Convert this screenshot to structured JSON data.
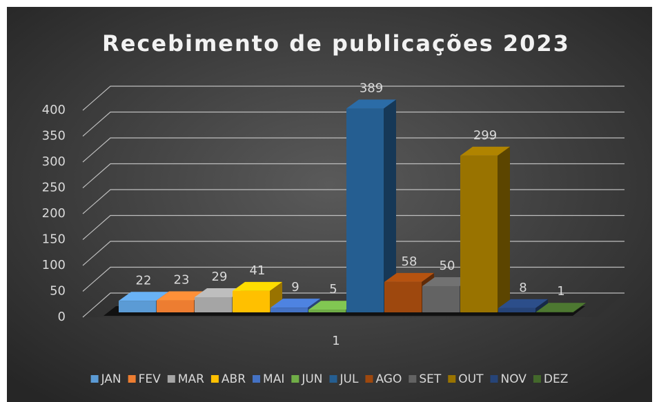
{
  "chart_data": {
    "type": "bar",
    "title": "Recebimento de publicações 2023",
    "categories": [
      "1"
    ],
    "series": [
      {
        "name": "JAN",
        "color": "#5b9bd5",
        "values": [
          22
        ]
      },
      {
        "name": "FEV",
        "color": "#ed7d31",
        "values": [
          23
        ]
      },
      {
        "name": "MAR",
        "color": "#a5a5a5",
        "values": [
          29
        ]
      },
      {
        "name": "ABR",
        "color": "#ffc000",
        "values": [
          41
        ]
      },
      {
        "name": "MAI",
        "color": "#4472c4",
        "values": [
          9
        ]
      },
      {
        "name": "JUN",
        "color": "#70ad47",
        "values": [
          5
        ]
      },
      {
        "name": "JUL",
        "color": "#255e91",
        "values": [
          389
        ]
      },
      {
        "name": "AGO",
        "color": "#9e480e",
        "values": [
          58
        ]
      },
      {
        "name": "SET",
        "color": "#636363",
        "values": [
          50
        ]
      },
      {
        "name": "OUT",
        "color": "#997300",
        "values": [
          299
        ]
      },
      {
        "name": "NOV",
        "color": "#264478",
        "values": [
          8
        ]
      },
      {
        "name": "DEZ",
        "color": "#43682b",
        "values": [
          1
        ]
      }
    ],
    "ylim": [
      0,
      400
    ],
    "yticks": [
      0,
      50,
      100,
      150,
      200,
      250,
      300,
      350,
      400
    ],
    "grid": true,
    "legend": "bottom"
  }
}
